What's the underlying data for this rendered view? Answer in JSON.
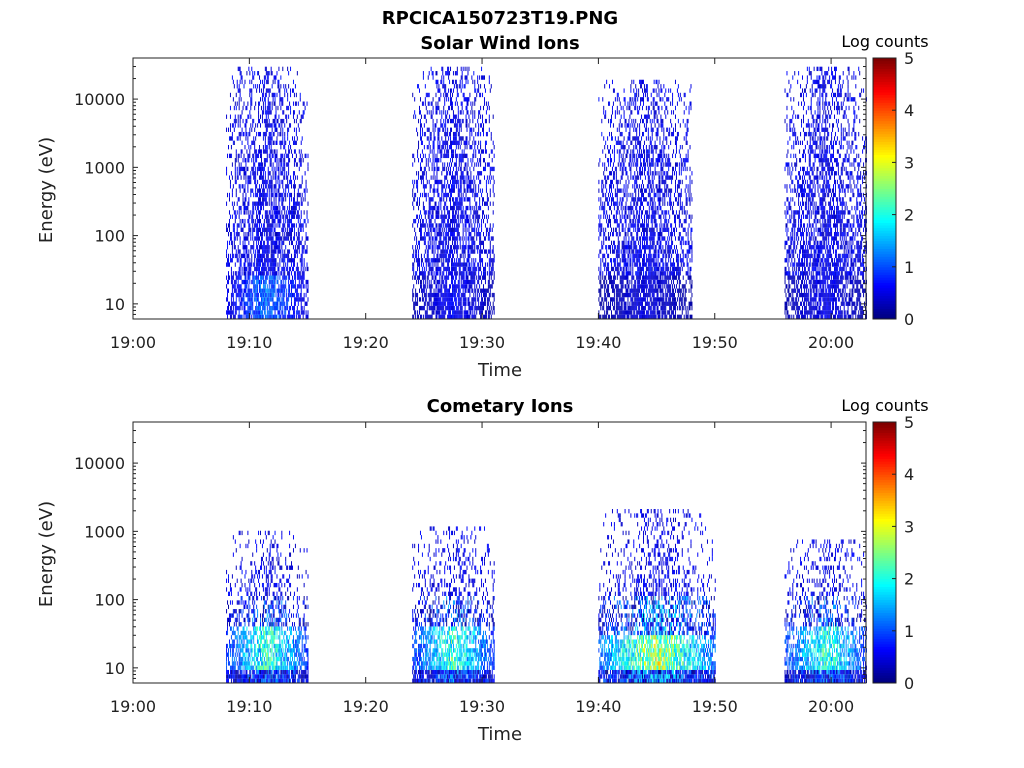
{
  "figure_title": "RPCICA150723T19.PNG",
  "colorbar": {
    "label": "Log counts",
    "range": [
      0,
      5
    ],
    "ticks": [
      "0",
      "1",
      "2",
      "3",
      "4",
      "5"
    ],
    "colormap": "jet"
  },
  "chart_data": [
    {
      "type": "heatmap",
      "title": "Solar Wind Ions",
      "xlabel": "Time",
      "ylabel": "Energy (eV)",
      "xlim": [
        "19:00",
        "20:03"
      ],
      "xticks": [
        "19:00",
        "19:10",
        "19:20",
        "19:30",
        "19:40",
        "19:50",
        "20:00"
      ],
      "y_scale": "log",
      "ylim": [
        6,
        40000
      ],
      "yticks": [
        "10",
        "100",
        "1000",
        "10000"
      ],
      "value_label": "Log counts",
      "value_range": [
        0,
        5
      ],
      "bursts": [
        {
          "start": "19:08",
          "end": "19:15",
          "e_min": 6,
          "e_max": 30000,
          "peak": 1.5,
          "peak_energy_range": [
            6,
            25
          ]
        },
        {
          "start": "19:24",
          "end": "19:31",
          "e_min": 6,
          "e_max": 30000,
          "peak": 0.8,
          "peak_energy_range": [
            6,
            25
          ]
        },
        {
          "start": "19:40",
          "end": "19:48",
          "e_min": 6,
          "e_max": 20000,
          "peak": 0.6,
          "peak_energy_range": [
            6,
            25
          ]
        },
        {
          "start": "19:56",
          "end": "20:03",
          "e_min": 6,
          "e_max": 30000,
          "peak": 0.7,
          "peak_energy_range": [
            6,
            25
          ]
        }
      ]
    },
    {
      "type": "heatmap",
      "title": "Cometary Ions",
      "xlabel": "Time",
      "ylabel": "Energy (eV)",
      "xlim": [
        "19:00",
        "20:03"
      ],
      "xticks": [
        "19:00",
        "19:10",
        "19:20",
        "19:30",
        "19:40",
        "19:50",
        "20:00"
      ],
      "y_scale": "log",
      "ylim": [
        6,
        40000
      ],
      "yticks": [
        "10",
        "100",
        "1000",
        "10000"
      ],
      "value_label": "Log counts",
      "value_range": [
        0,
        5
      ],
      "bursts": [
        {
          "start": "19:08",
          "end": "19:15",
          "e_min": 6,
          "e_max": 1000,
          "peak": 2.8,
          "peak_energy_range": [
            10,
            40
          ]
        },
        {
          "start": "19:24",
          "end": "19:31",
          "e_min": 6,
          "e_max": 1200,
          "peak": 2.8,
          "peak_energy_range": [
            10,
            40
          ]
        },
        {
          "start": "19:40",
          "end": "19:50",
          "e_min": 6,
          "e_max": 2000,
          "peak": 3.6,
          "peak_energy_range": [
            10,
            30
          ]
        },
        {
          "start": "19:56",
          "end": "20:03",
          "e_min": 6,
          "e_max": 800,
          "peak": 2.8,
          "peak_energy_range": [
            10,
            40
          ]
        }
      ]
    }
  ]
}
